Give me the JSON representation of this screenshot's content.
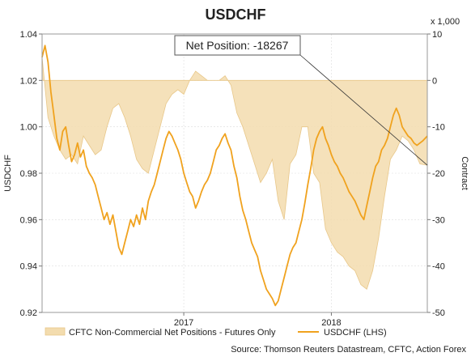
{
  "chart_data": {
    "type": "area",
    "title": "USDCHF",
    "ylabel_left": "USDCHF",
    "ylabel_right": "Contract",
    "right_multiplier": "x 1,000",
    "left_ylim": [
      0.92,
      1.04
    ],
    "left_ticks": [
      "1.04",
      "1.02",
      "1.00",
      "0.98",
      "0.96",
      "0.94",
      "0.92"
    ],
    "right_ylim": [
      -50,
      10
    ],
    "right_ticks": [
      "10",
      "0",
      "-10",
      "-20",
      "-30",
      "-40",
      "-50"
    ],
    "x_ticks": [
      "2017",
      "2018"
    ],
    "x_range": [
      2016.04,
      2018.65
    ],
    "x_tick_positions": [
      2017.0,
      2018.0
    ],
    "grid": true,
    "legend_position": "bottom",
    "annotation": {
      "text": "Net Position: -18267",
      "x": 2018.65,
      "y": -18.267
    },
    "source": "Source: Thomson Reuters Datastream, CFTC, Action Forex",
    "series": [
      {
        "name": "CFTC Non-Commercial Net Positions - Futures Only",
        "axis": "right",
        "color": "#f3dcae",
        "x": [
          2016.04,
          2016.08,
          2016.12,
          2016.16,
          2016.2,
          2016.24,
          2016.28,
          2016.32,
          2016.36,
          2016.4,
          2016.44,
          2016.48,
          2016.52,
          2016.56,
          2016.6,
          2016.64,
          2016.68,
          2016.72,
          2016.76,
          2016.8,
          2016.84,
          2016.88,
          2016.92,
          2016.96,
          2017.0,
          2017.04,
          2017.08,
          2017.12,
          2017.16,
          2017.2,
          2017.24,
          2017.28,
          2017.32,
          2017.36,
          2017.4,
          2017.44,
          2017.48,
          2017.52,
          2017.56,
          2017.6,
          2017.64,
          2017.68,
          2017.72,
          2017.76,
          2017.8,
          2017.84,
          2017.88,
          2017.92,
          2017.96,
          2018.0,
          2018.04,
          2018.08,
          2018.12,
          2018.16,
          2018.2,
          2018.24,
          2018.28,
          2018.32,
          2018.36,
          2018.4,
          2018.44,
          2018.48,
          2018.52,
          2018.56,
          2018.6,
          2018.65
        ],
        "values": [
          5,
          -8,
          -12,
          -15,
          -17,
          -16,
          -18,
          -12,
          -14,
          -16,
          -15,
          -10,
          -6,
          -5,
          -8,
          -12,
          -17,
          -19,
          -20,
          -15,
          -10,
          -5,
          -3,
          -2,
          -3,
          0,
          2,
          1,
          0,
          0,
          0,
          1,
          -1,
          -7,
          -10,
          -14,
          -18,
          -22,
          -20,
          -17,
          -26,
          -30,
          -18,
          -16,
          -10,
          -10,
          -20,
          -22,
          -32,
          -35,
          -37,
          -38,
          -40,
          -41,
          -44,
          -45,
          -41,
          -34,
          -25,
          -17,
          -15,
          -12,
          -13,
          -15,
          -18,
          -18.267
        ]
      },
      {
        "name": "USDCHF (LHS)",
        "axis": "left",
        "color": "#f0a21e",
        "x": [
          2016.04,
          2016.06,
          2016.08,
          2016.1,
          2016.12,
          2016.14,
          2016.16,
          2016.18,
          2016.2,
          2016.22,
          2016.24,
          2016.26,
          2016.28,
          2016.3,
          2016.32,
          2016.34,
          2016.36,
          2016.38,
          2016.4,
          2016.42,
          2016.44,
          2016.46,
          2016.48,
          2016.5,
          2016.52,
          2016.54,
          2016.56,
          2016.58,
          2016.6,
          2016.62,
          2016.64,
          2016.66,
          2016.68,
          2016.7,
          2016.72,
          2016.74,
          2016.76,
          2016.78,
          2016.8,
          2016.82,
          2016.84,
          2016.86,
          2016.88,
          2016.9,
          2016.92,
          2016.94,
          2016.96,
          2016.98,
          2017.0,
          2017.02,
          2017.04,
          2017.06,
          2017.08,
          2017.1,
          2017.12,
          2017.14,
          2017.16,
          2017.18,
          2017.2,
          2017.22,
          2017.24,
          2017.26,
          2017.28,
          2017.3,
          2017.32,
          2017.34,
          2017.36,
          2017.38,
          2017.4,
          2017.42,
          2017.44,
          2017.46,
          2017.48,
          2017.5,
          2017.52,
          2017.54,
          2017.56,
          2017.58,
          2017.6,
          2017.62,
          2017.64,
          2017.66,
          2017.68,
          2017.7,
          2017.72,
          2017.74,
          2017.76,
          2017.78,
          2017.8,
          2017.82,
          2017.84,
          2017.86,
          2017.88,
          2017.9,
          2017.92,
          2017.94,
          2017.96,
          2017.98,
          2018.0,
          2018.02,
          2018.04,
          2018.06,
          2018.08,
          2018.1,
          2018.12,
          2018.14,
          2018.16,
          2018.18,
          2018.2,
          2018.22,
          2018.24,
          2018.26,
          2018.28,
          2018.3,
          2018.32,
          2018.34,
          2018.36,
          2018.38,
          2018.4,
          2018.42,
          2018.44,
          2018.46,
          2018.48,
          2018.5,
          2018.52,
          2018.54,
          2018.56,
          2018.58,
          2018.6,
          2018.62,
          2018.65
        ],
        "values": [
          1.03,
          1.035,
          1.028,
          1.015,
          1.005,
          0.995,
          0.99,
          0.998,
          1.0,
          0.992,
          0.985,
          0.988,
          0.993,
          0.987,
          0.99,
          0.983,
          0.98,
          0.978,
          0.975,
          0.97,
          0.965,
          0.96,
          0.963,
          0.958,
          0.962,
          0.955,
          0.948,
          0.945,
          0.95,
          0.955,
          0.96,
          0.957,
          0.962,
          0.958,
          0.965,
          0.96,
          0.968,
          0.972,
          0.975,
          0.98,
          0.985,
          0.99,
          0.995,
          0.998,
          0.996,
          0.993,
          0.99,
          0.986,
          0.98,
          0.976,
          0.972,
          0.97,
          0.965,
          0.968,
          0.972,
          0.975,
          0.977,
          0.98,
          0.985,
          0.99,
          0.992,
          0.995,
          0.997,
          0.993,
          0.99,
          0.983,
          0.978,
          0.97,
          0.964,
          0.96,
          0.955,
          0.95,
          0.947,
          0.944,
          0.938,
          0.934,
          0.93,
          0.928,
          0.926,
          0.923,
          0.925,
          0.93,
          0.935,
          0.94,
          0.945,
          0.948,
          0.95,
          0.955,
          0.96,
          0.967,
          0.975,
          0.982,
          0.99,
          0.995,
          0.998,
          1.0,
          0.995,
          0.992,
          0.988,
          0.985,
          0.983,
          0.98,
          0.978,
          0.975,
          0.972,
          0.97,
          0.968,
          0.965,
          0.962,
          0.96,
          0.966,
          0.972,
          0.978,
          0.983,
          0.985,
          0.99,
          0.992,
          0.995,
          1.0,
          1.005,
          1.008,
          1.005,
          1.0,
          0.998,
          0.996,
          0.995,
          0.993,
          0.992,
          0.993,
          0.994,
          0.996
        ]
      }
    ],
    "legend": [
      {
        "label": "CFTC Non-Commercial Net Positions - Futures Only",
        "kind": "area"
      },
      {
        "label": "USDCHF (LHS)",
        "kind": "line"
      }
    ]
  }
}
